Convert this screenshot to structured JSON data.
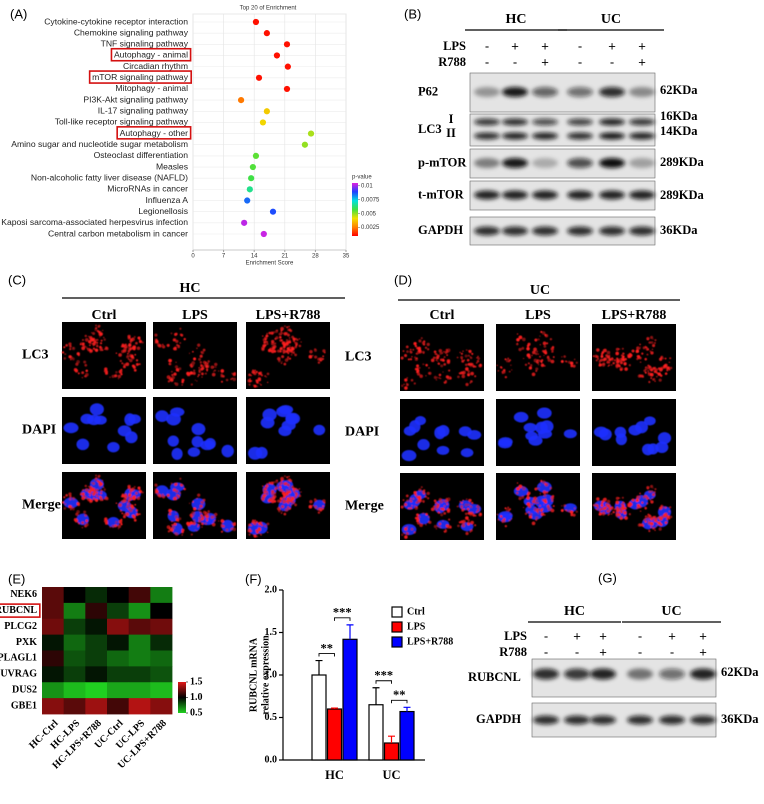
{
  "chart_data": [
    {
      "type": "dot",
      "panel_label": "(A)",
      "title": "Top 20 of  Enrichment",
      "x_label": "Enrichment Score",
      "categories": [
        "Cytokine-cytokine receptor interaction",
        "Chemokine signaling pathway",
        "TNF signaling pathway",
        "Autophagy - animal",
        "Circadian rhythm",
        "mTOR signaling pathway",
        "Mitophagy - animal",
        "PI3K-Akt signaling pathway",
        "IL-17 signaling pathway",
        "Toll-like receptor signaling pathway",
        "Autophagy - other",
        "Amino sugar and nucleotide sugar metabolism",
        "Osteoclast differentiation",
        "Measles",
        "Non-alcoholic fatty liver disease (NAFLD)",
        "MicroRNAs in cancer",
        "Influenza A",
        "Legionellosis",
        "Kaposi sarcoma-associated herpesvirus infection",
        "Central carbon metabolism in cancer"
      ],
      "values": [
        14.4,
        16.9,
        21.5,
        19.2,
        21.7,
        15.1,
        21.5,
        11,
        16.9,
        16,
        27,
        25.6,
        14.4,
        13.7,
        13.3,
        13,
        12.4,
        18.3,
        11.7,
        16.2
      ],
      "p_values": [
        0.0012,
        0.0012,
        0.0012,
        0.0012,
        0.0012,
        0.0012,
        0.0012,
        0.0025,
        0.0038,
        0.004,
        0.0048,
        0.005,
        0.0055,
        0.0056,
        0.0058,
        0.0065,
        0.0085,
        0.0088,
        0.0102,
        0.0103
      ],
      "highlight": [
        3,
        5,
        10
      ],
      "xlim": [
        0,
        35
      ],
      "xticks": [
        0,
        7,
        14,
        21,
        28,
        35
      ],
      "grid": true,
      "colorbar_label": "p-value",
      "colorscale": [
        "#ff0000",
        "#ff8000",
        "#f0e000",
        "#40e040",
        "#00e0e0",
        "#2040ff",
        "#e020e0"
      ],
      "colorlim": [
        0.001,
        0.0105
      ],
      "colorticks": [
        0.01,
        0.0075,
        0.005,
        0.0025
      ]
    },
    {
      "type": "heatmap",
      "panel_label": "(E)",
      "rows": [
        "NEK6",
        "RUBCNL",
        "PLCG2",
        "PXK",
        "PLAGL1",
        "UVRAG",
        "DUS2",
        "GBE1"
      ],
      "columns": [
        "HC-Ctrl",
        "HC-LPS",
        "HC-LPS+R788",
        "UC-Ctrl",
        "UC-LPS",
        "UC-LPS+R788"
      ],
      "values": [
        [
          1.2,
          1.0,
          0.9,
          1.0,
          1.15,
          0.7
        ],
        [
          1.2,
          0.7,
          1.1,
          0.85,
          0.65,
          1.0
        ],
        [
          1.25,
          0.85,
          0.95,
          1.3,
          1.2,
          1.25
        ],
        [
          0.95,
          0.75,
          0.85,
          0.95,
          0.7,
          0.9
        ],
        [
          1.1,
          0.8,
          0.85,
          0.75,
          0.7,
          0.75
        ],
        [
          0.95,
          0.85,
          0.95,
          0.85,
          0.85,
          0.8
        ],
        [
          0.65,
          0.55,
          0.5,
          0.6,
          0.6,
          0.55
        ],
        [
          1.3,
          1.2,
          1.35,
          1.15,
          1.4,
          1.3
        ]
      ],
      "highlight": [
        1
      ],
      "colorscale": [
        "#20d020",
        "#000000",
        "#e01818"
      ],
      "colorlim": [
        0.5,
        1.5
      ],
      "colorticks": [
        1.5,
        {
          "value": 1,
          "label": "1.0"
        },
        0.5
      ]
    },
    {
      "type": "bar",
      "panel_label": "(F)",
      "y_label": [
        "RUBCNL mRNA",
        "relative expression"
      ],
      "categories": [
        "HC",
        "UC"
      ],
      "series": [
        {
          "name": "Ctrl",
          "color": "#ffffff",
          "values": [
            1.0,
            0.65
          ],
          "errors": [
            0.17,
            0.2
          ]
        },
        {
          "name": "LPS",
          "color": "#ff0000",
          "values": [
            0.6,
            0.2
          ],
          "errors": [
            0.01,
            0.08
          ]
        },
        {
          "name": "LPS+R788",
          "color": "#0000ff",
          "values": [
            1.42,
            0.57
          ],
          "errors": [
            0.17,
            0.05
          ]
        }
      ],
      "edgecolor": "#000000",
      "ylim": [
        0,
        2
      ],
      "yticks": [
        {
          "value": 0,
          "label": "0.0"
        },
        {
          "value": 0.5,
          "label": "0.5"
        },
        {
          "value": 1,
          "label": "1.0"
        },
        {
          "value": 1.5,
          "label": "1.5"
        },
        {
          "value": 2,
          "label": "2.0"
        }
      ],
      "annotations": [
        {
          "text": "**",
          "category": 0,
          "between": [
            0,
            1
          ]
        },
        {
          "text": "***",
          "category": 0,
          "between": [
            1,
            2
          ]
        },
        {
          "text": "***",
          "category": 1,
          "between": [
            0,
            1
          ]
        },
        {
          "text": "**",
          "category": 1,
          "between": [
            1,
            2
          ]
        }
      ]
    }
  ],
  "blot_b": {
    "panel_label": "(B)",
    "groups": [
      "HC",
      "UC"
    ],
    "treatments": [
      {
        "name": "LPS",
        "signs": [
          "-",
          "+",
          "+",
          "-",
          "+",
          "+"
        ]
      },
      {
        "name": "R788",
        "signs": [
          "-",
          "-",
          "+",
          "-",
          "-",
          "+"
        ]
      }
    ],
    "rows": [
      {
        "name": "P62",
        "sizes": [
          "62KDa"
        ]
      },
      {
        "name": "LC3",
        "bands": [
          "I",
          "II"
        ],
        "sizes": [
          "16KDa",
          "14KDa"
        ]
      },
      {
        "name": "p-mTOR",
        "sizes": [
          "289KDa"
        ]
      },
      {
        "name": "t-mTOR",
        "sizes": [
          "289KDa"
        ]
      },
      {
        "name": "GAPDH",
        "sizes": [
          "36KDa"
        ]
      }
    ]
  },
  "blot_g": {
    "panel_label": "(G)",
    "groups": [
      "HC",
      "UC"
    ],
    "treatments": [
      {
        "name": "LPS",
        "signs": [
          "-",
          "+",
          "+",
          "-",
          "+",
          "+"
        ]
      },
      {
        "name": "R788",
        "signs": [
          "-",
          "-",
          "+",
          "-",
          "-",
          "+"
        ]
      }
    ],
    "rows": [
      {
        "name": "RUBCNL",
        "sizes": [
          "62KDa"
        ]
      },
      {
        "name": "GAPDH",
        "sizes": [
          "36KDa"
        ]
      }
    ]
  },
  "micro_c": {
    "panel_label": "(C)",
    "group": "HC",
    "columns": [
      "Ctrl",
      "LPS",
      "LPS+R788"
    ],
    "rows": [
      "LC3",
      "DAPI",
      "Merge"
    ]
  },
  "micro_d": {
    "panel_label": "(D)",
    "group": "UC",
    "columns": [
      "Ctrl",
      "LPS",
      "LPS+R788"
    ],
    "rows": [
      "LC3",
      "DAPI",
      "Merge"
    ]
  }
}
